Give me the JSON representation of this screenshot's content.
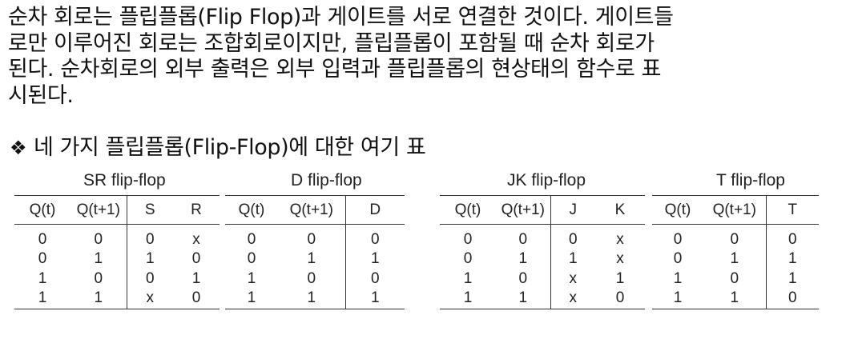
{
  "paragraph": {
    "lines": [
      "순차 회로는 플립플롭(Flip Flop)과 게이트를 서로 연결한 것이다. 게이트들",
      "로만 이루어진 회로는 조합회로이지만, 플립플롭이 포함될 때 순차 회로가",
      "된다. 순차회로의 외부 출력은 외부 입력과 플립플롭의 현상태의 함수로 표",
      "시된다."
    ]
  },
  "heading": {
    "bullet": "❖",
    "text": "네 가지 플립플롭(Flip-Flop)에 대한 여기 표"
  },
  "tables": [
    {
      "title": "SR flip-flop",
      "headers": [
        "Q(t)",
        "Q(t+1)",
        "S",
        "R"
      ],
      "rows": [
        [
          "0",
          "0",
          "0",
          "x"
        ],
        [
          "0",
          "1",
          "1",
          "0"
        ],
        [
          "1",
          "0",
          "0",
          "1"
        ],
        [
          "1",
          "1",
          "x",
          "0"
        ]
      ]
    },
    {
      "title": "D flip-flop",
      "headers": [
        "Q(t)",
        "Q(t+1)",
        "D"
      ],
      "rows": [
        [
          "0",
          "0",
          "0"
        ],
        [
          "0",
          "1",
          "1"
        ],
        [
          "1",
          "0",
          "0"
        ],
        [
          "1",
          "1",
          "1"
        ]
      ]
    },
    {
      "title": "JK flip-flop",
      "headers": [
        "Q(t)",
        "Q(t+1)",
        "J",
        "K"
      ],
      "rows": [
        [
          "0",
          "0",
          "0",
          "x"
        ],
        [
          "0",
          "1",
          "1",
          "x"
        ],
        [
          "1",
          "0",
          "x",
          "1"
        ],
        [
          "1",
          "1",
          "x",
          "0"
        ]
      ]
    },
    {
      "title": "T flip-flop",
      "headers": [
        "Q(t)",
        "Q(t+1)",
        "T"
      ],
      "rows": [
        [
          "0",
          "0",
          "0"
        ],
        [
          "0",
          "1",
          "1"
        ],
        [
          "1",
          "0",
          "1"
        ],
        [
          "1",
          "1",
          "0"
        ]
      ]
    }
  ]
}
